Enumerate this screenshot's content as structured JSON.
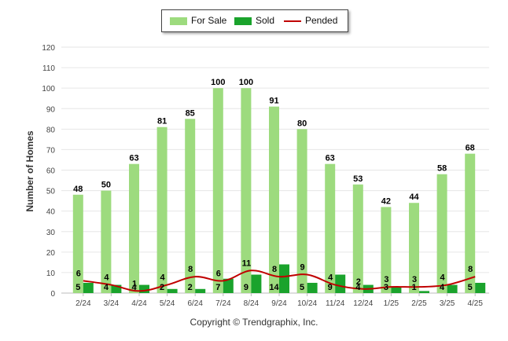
{
  "chart_data": {
    "type": "bar",
    "ylabel": "Number of Homes",
    "ylim": [
      0,
      120
    ],
    "yticks": [
      0,
      10,
      20,
      30,
      40,
      50,
      60,
      70,
      80,
      90,
      100,
      110,
      120
    ],
    "grid": true,
    "legend_position": "top-center",
    "categories": [
      "2/24",
      "3/24",
      "4/24",
      "5/24",
      "6/24",
      "7/24",
      "8/24",
      "9/24",
      "10/24",
      "11/24",
      "12/24",
      "1/25",
      "2/25",
      "3/25",
      "4/25"
    ],
    "series": [
      {
        "name": "For Sale",
        "type": "bar",
        "color": "#9ddb7e",
        "values": [
          48,
          50,
          63,
          81,
          85,
          100,
          100,
          91,
          80,
          63,
          53,
          42,
          44,
          58,
          68
        ]
      },
      {
        "name": "Sold",
        "type": "bar",
        "color": "#1aa32c",
        "values": [
          5,
          4,
          4,
          2,
          2,
          7,
          9,
          14,
          5,
          9,
          4,
          3,
          1,
          4,
          5
        ]
      },
      {
        "name": "Pended",
        "type": "line",
        "color": "#c00000",
        "values": [
          6,
          4,
          1,
          4,
          8,
          6,
          11,
          8,
          9,
          4,
          2,
          3,
          3,
          4,
          8
        ]
      }
    ]
  },
  "footer": {
    "copyright": "Copyright © Trendgraphix, Inc."
  }
}
